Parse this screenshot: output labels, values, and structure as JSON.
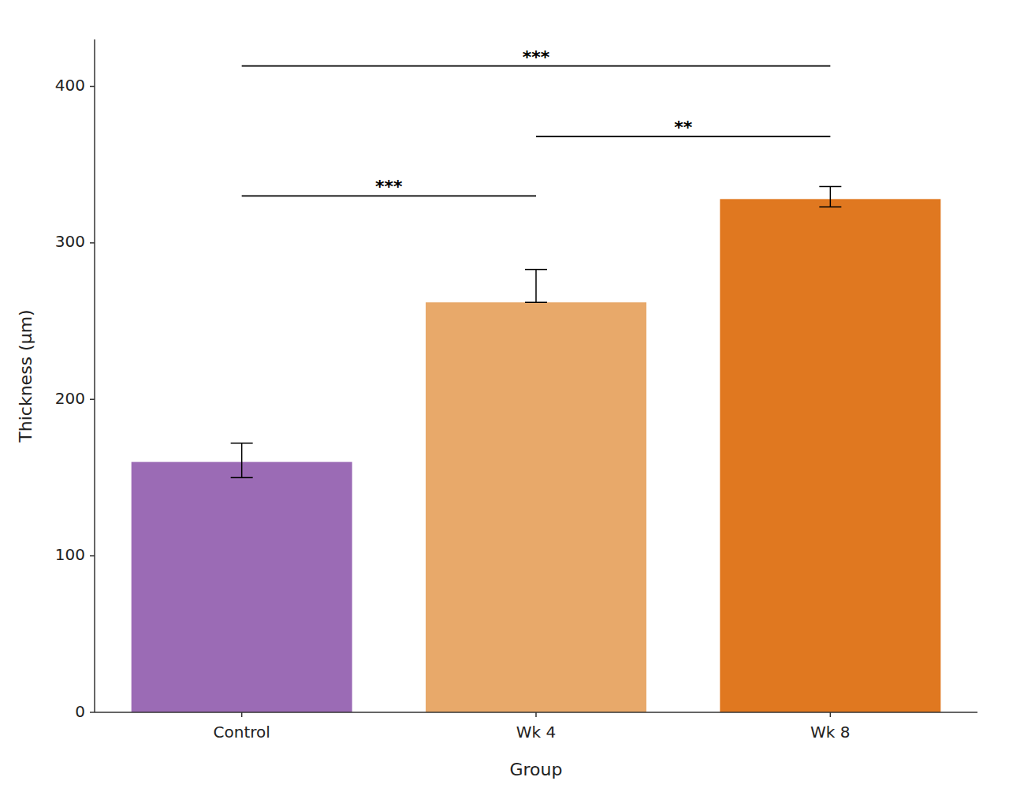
{
  "chart_data": {
    "type": "bar",
    "categories": [
      "Control",
      "Wk 4",
      "Wk 8"
    ],
    "values": [
      160,
      262,
      328
    ],
    "ci_upper": [
      172,
      283,
      336
    ],
    "ci_lower": [
      150,
      262,
      323
    ],
    "colors": [
      "#9B6BB5",
      "#E8A96A",
      "#E07820"
    ],
    "ylabel": "Thickness (μm)",
    "xlabel": "Group",
    "ylim": [
      0,
      430
    ],
    "yticks": [
      0,
      100,
      200,
      300,
      400
    ],
    "grid": false,
    "significance": [
      {
        "x1": 0,
        "x2": 2,
        "y": 413,
        "label": "***"
      },
      {
        "x1": 0,
        "x2": 1,
        "y": 330,
        "label": "***"
      },
      {
        "x1": 1,
        "x2": 2,
        "y": 368,
        "label": "**"
      }
    ]
  }
}
